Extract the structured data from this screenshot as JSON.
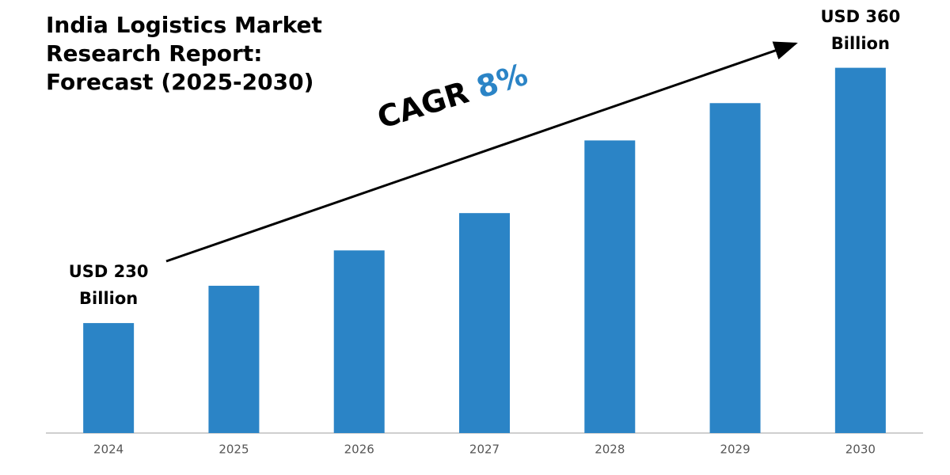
{
  "chart_data": {
    "type": "bar",
    "title": "India Logistics Market Research Report: Forecast (2025-2030)",
    "annotation": "CAGR",
    "annotation_value": "8%",
    "categories": [
      "2024",
      "2025",
      "2026",
      "2027",
      "2028",
      "2029",
      "2030"
    ],
    "values": [
      230,
      249,
      267,
      286,
      323,
      342,
      360
    ],
    "value_labels": [
      "USD 230 Billion",
      null,
      null,
      null,
      null,
      null,
      "USD 360 Billion"
    ],
    "color": "#2b84c6",
    "ylim": [
      174,
      380
    ]
  }
}
